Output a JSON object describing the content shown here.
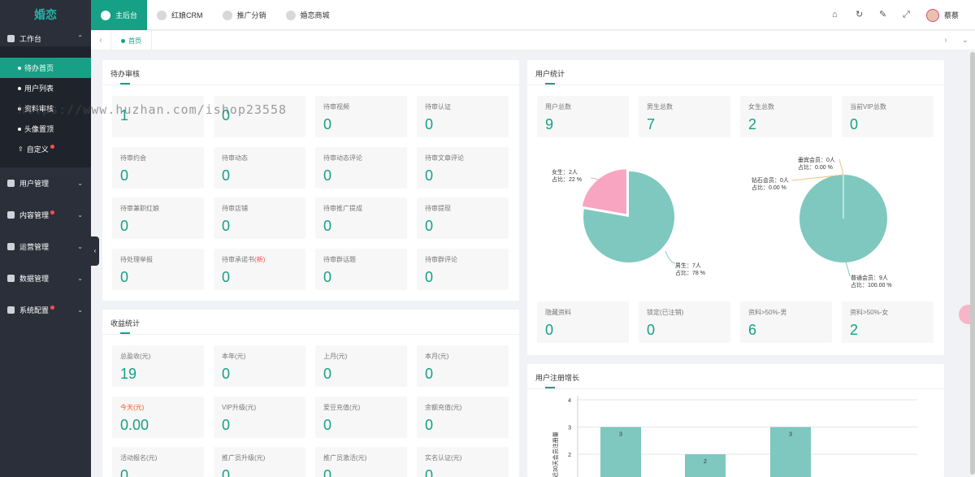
{
  "app": {
    "brand": "婚恋"
  },
  "topnav": [
    {
      "label": "主后台",
      "icon": "dashboard-icon"
    },
    {
      "label": "红娘CRM",
      "icon": "crm-icon"
    },
    {
      "label": "推广分销",
      "icon": "promote-icon"
    },
    {
      "label": "婚恋商城",
      "icon": "store-icon"
    }
  ],
  "topright": {
    "icons": [
      "home-icon",
      "refresh-icon",
      "clear-icon",
      "fullscreen-icon"
    ],
    "username": "蔡蔡"
  },
  "sidebar": {
    "workbench": {
      "label": "工作台",
      "icon": "grid-icon"
    },
    "sub": [
      {
        "label": "待办首页"
      },
      {
        "label": "用户列表"
      },
      {
        "label": "资料审核"
      },
      {
        "label": "头像置顶"
      },
      {
        "label": "自定义",
        "badge": true
      }
    ],
    "groups": [
      {
        "label": "用户管理",
        "icon": "user-icon"
      },
      {
        "label": "内容管理",
        "icon": "content-icon",
        "badge": true
      },
      {
        "label": "运营管理",
        "icon": "chart-icon"
      },
      {
        "label": "数据管理",
        "icon": "pie-icon"
      },
      {
        "label": "系统配置",
        "icon": "gear-icon",
        "badge": true
      }
    ]
  },
  "tabs": {
    "home_label": "首页"
  },
  "watermark": "https://www.huzhan.com/ishop23558",
  "pending": {
    "title": "待办审核",
    "items": [
      {
        "label": "",
        "value": "1"
      },
      {
        "label": "",
        "value": "0"
      },
      {
        "label": "待审视频",
        "value": "0"
      },
      {
        "label": "待审认证",
        "value": "0"
      },
      {
        "label": "待审约会",
        "value": "0"
      },
      {
        "label": "待审动态",
        "value": "0"
      },
      {
        "label": "待审动态评论",
        "value": "0"
      },
      {
        "label": "待审文章评论",
        "value": "0"
      },
      {
        "label": "待审兼职红娘",
        "value": "0"
      },
      {
        "label": "待审店铺",
        "value": "0"
      },
      {
        "label": "待审推广提成",
        "value": "0"
      },
      {
        "label": "待审提现",
        "value": "0"
      },
      {
        "label": "待处理举报",
        "value": "0"
      },
      {
        "label": "待审承诺书",
        "label_new": "(新)",
        "value": "0"
      },
      {
        "label": "待审群话题",
        "value": "0"
      },
      {
        "label": "待审群评论",
        "value": "0"
      }
    ]
  },
  "income": {
    "title": "收益统计",
    "items": [
      {
        "label": "总盈收(元)",
        "value": "19"
      },
      {
        "label": "本年(元)",
        "value": "0"
      },
      {
        "label": "上月(元)",
        "value": "0"
      },
      {
        "label": "本月(元)",
        "value": "0"
      },
      {
        "label": "今天(元)",
        "value": "0.00",
        "highlight": true
      },
      {
        "label": "VIP升级(元)",
        "value": "0"
      },
      {
        "label": "爱豆充值(元)",
        "value": "0"
      },
      {
        "label": "余额充值(元)",
        "value": "0"
      },
      {
        "label": "活动报名(元)",
        "value": "0"
      },
      {
        "label": "推广员升级(元)",
        "value": "0"
      },
      {
        "label": "推广员激活(元)",
        "value": "0"
      },
      {
        "label": "实名认证(元)",
        "value": "0"
      }
    ]
  },
  "users": {
    "title": "用户统计",
    "top": [
      {
        "label": "用户总数",
        "value": "9"
      },
      {
        "label": "男生总数",
        "value": "7"
      },
      {
        "label": "女生总数",
        "value": "2"
      },
      {
        "label": "当前VIP总数",
        "value": "0"
      }
    ],
    "bottom": [
      {
        "label": "隐藏资料",
        "value": "0"
      },
      {
        "label": "锁定(已注销)",
        "value": "0"
      },
      {
        "label": "资料>50%-男",
        "value": "6"
      },
      {
        "label": "资料>50%-女",
        "value": "2"
      }
    ],
    "gender_pie": {
      "female": {
        "l1": "女生：2人",
        "l2": "占比：22 %",
        "value": 2,
        "color": "#f8a5c2"
      },
      "male": {
        "l1": "男生：7人",
        "l2": "占比：78 %",
        "value": 7,
        "color": "#7ec8bf"
      }
    },
    "member_pie": {
      "gold": {
        "l1": "垂宾会员：0人",
        "l2": "占比：0.00 %"
      },
      "diamond": {
        "l1": "钻石会员：0人",
        "l2": "占比：0.00 %"
      },
      "normal": {
        "l1": "普通会员：9人",
        "l2": "占比：100.00 %"
      },
      "color": "#7ec8bf"
    }
  },
  "growth": {
    "title": "用户注册增长",
    "ylabel": "近30天会员注册量"
  },
  "chart_data": {
    "type": "bar",
    "title": "用户注册增长",
    "ylabel": "近30天会员注册量",
    "xlabel": "",
    "categories": [
      "",
      "",
      ""
    ],
    "values": [
      3,
      2,
      3
    ],
    "y_ticks": [
      2,
      3,
      4
    ],
    "ylim": [
      1,
      4
    ],
    "color": "#7ec8bf"
  }
}
